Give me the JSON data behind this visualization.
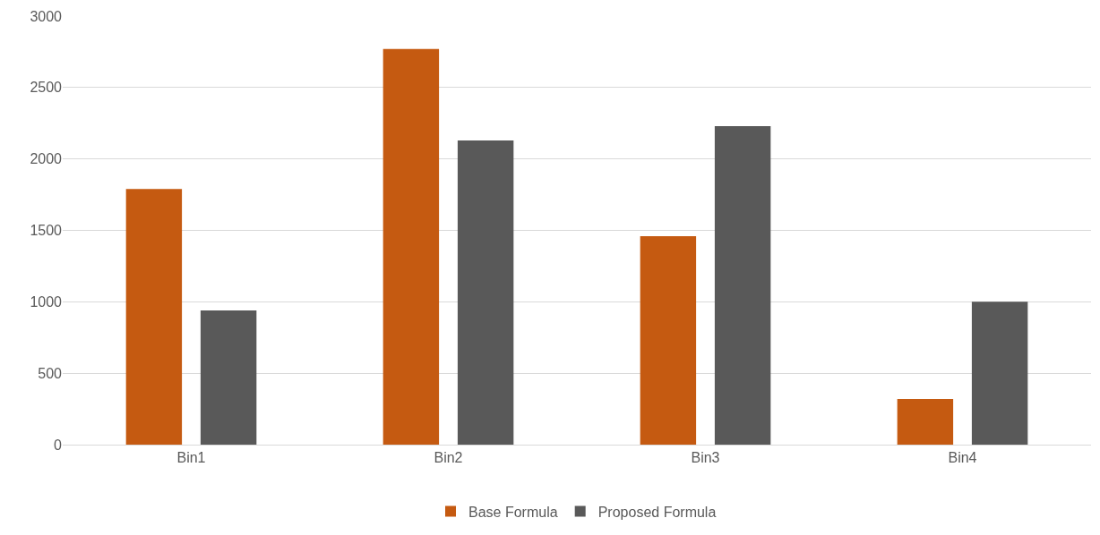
{
  "chart_data": {
    "type": "bar",
    "categories": [
      "Bin1",
      "Bin2",
      "Bin3",
      "Bin4"
    ],
    "series": [
      {
        "name": "Base Formula",
        "color": "#c55a11",
        "values": [
          1790,
          2770,
          1460,
          320
        ]
      },
      {
        "name": "Proposed Formula",
        "color": "#595959",
        "values": [
          940,
          2130,
          2230,
          1000
        ]
      }
    ],
    "ylim": [
      0,
      3000
    ],
    "yticks": [
      0,
      500,
      1000,
      1500,
      2000,
      2500,
      3000
    ],
    "grid": "y",
    "legend": "bottom"
  }
}
